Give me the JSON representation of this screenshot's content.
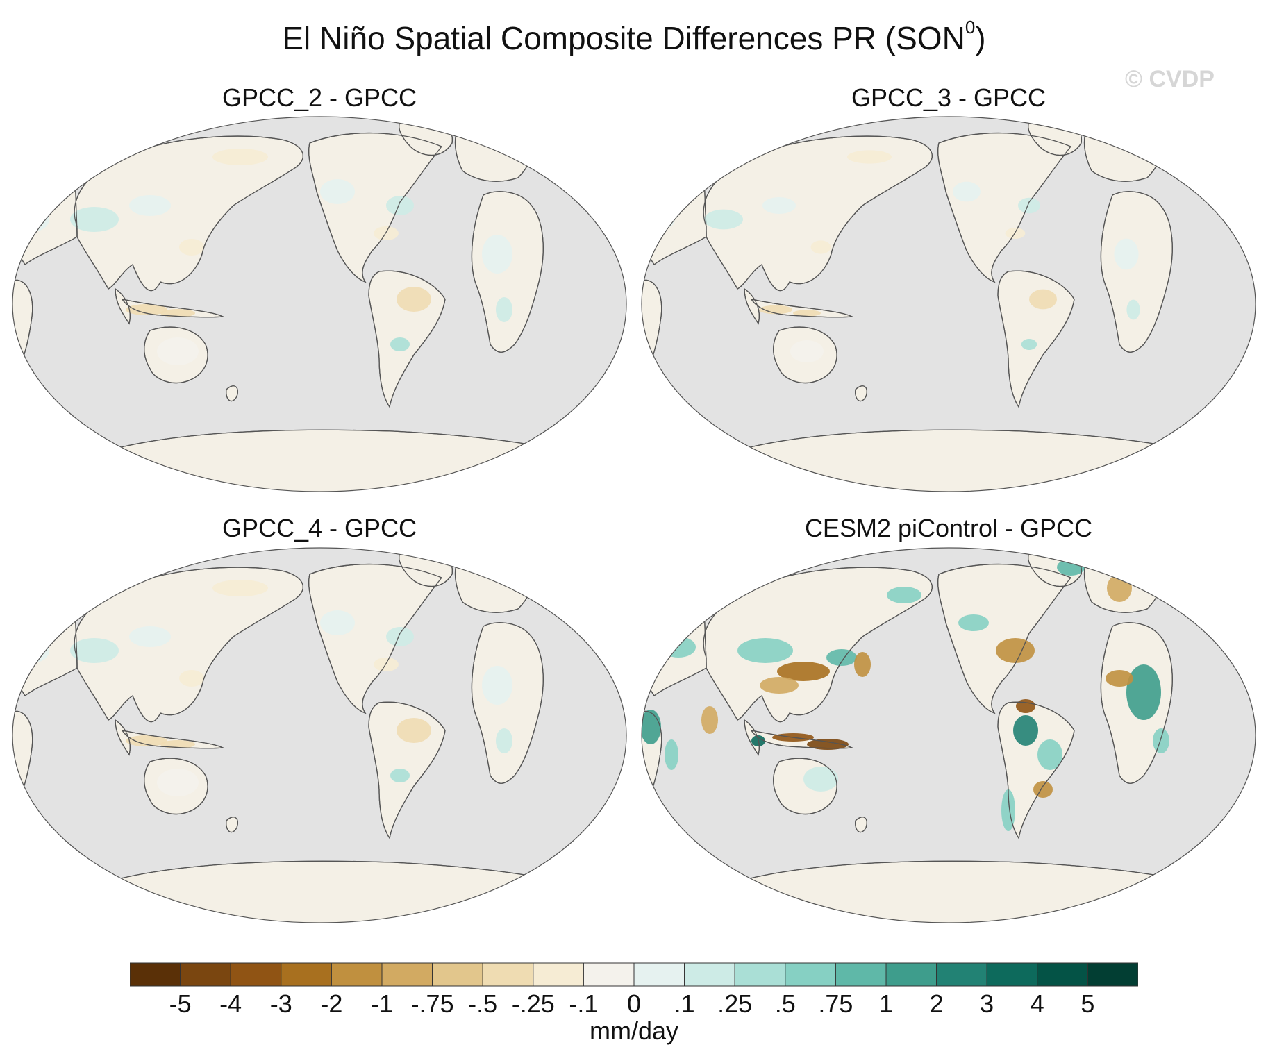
{
  "title": {
    "main": "El Niño Spatial Composite Differences PR (SON",
    "superscript": "0",
    "close": ")"
  },
  "watermark": "© CVDP",
  "colors": {
    "ocean": "#e3e3e3",
    "coast": "#555555",
    "land_neutral": "#f4f0e6"
  },
  "panels": [
    {
      "title": "GPCC_2 - GPCC",
      "intensity": "weak"
    },
    {
      "title": "GPCC_3 - GPCC",
      "intensity": "weak"
    },
    {
      "title": "GPCC_4 - GPCC",
      "intensity": "weak"
    },
    {
      "title": "CESM2 piControl - GPCC",
      "intensity": "strong"
    }
  ],
  "chart_data": {
    "type": "heatmap",
    "title": "El Niño Spatial Composite Differences PR (SON0)",
    "projection": "Robinson, Pacific-centered",
    "units": "mm/day",
    "colorbar": {
      "boundaries": [
        "-5",
        "-4",
        "-3",
        "-2",
        "-1",
        "-.75",
        "-.5",
        "-.25",
        "-.1",
        "0",
        ".1",
        ".25",
        ".5",
        ".75",
        "1",
        "2",
        "3",
        "4",
        "5"
      ],
      "colors": [
        "#5a3007",
        "#7a4610",
        "#905414",
        "#a8701f",
        "#c0903f",
        "#d2aa62",
        "#e2c68c",
        "#efdcb2",
        "#f6ecd4",
        "#f4f2ec",
        "#e6f2f0",
        "#cdebe6",
        "#aadfd6",
        "#86d0c3",
        "#5fb8a8",
        "#3e9d8c",
        "#228274",
        "#0d6a5c",
        "#045346",
        "#023e33"
      ]
    },
    "maps": [
      "GPCC_2 - GPCC",
      "GPCC_3 - GPCC",
      "GPCC_4 - GPCC",
      "CESM2 piControl - GPCC"
    ]
  }
}
